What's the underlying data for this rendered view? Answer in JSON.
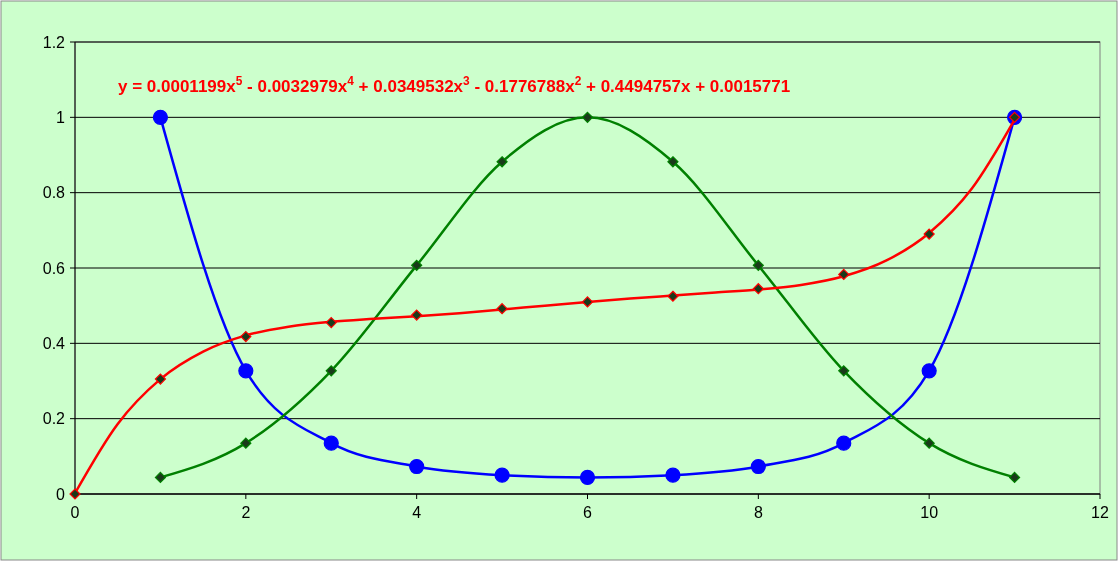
{
  "chart_data": {
    "type": "line",
    "x": [
      1,
      2,
      3,
      4,
      5,
      6,
      7,
      8,
      9,
      10,
      11
    ],
    "xlim": [
      0,
      12
    ],
    "xticks": [
      0,
      2,
      4,
      6,
      8,
      10,
      12
    ],
    "ylim": [
      0,
      1.2
    ],
    "yticks": [
      0,
      0.2,
      0.4,
      0.6,
      0.8,
      1,
      1.2
    ],
    "grid": "y",
    "line_style": "solid",
    "annotations": [
      "y = 0.0001199x$^{5}$ - 0.0032979x$^{4}$ + 0.0349532x$^{3}$ - 0.1776788x$^{2}$ + 0.4494757x + 0.0015771"
    ],
    "series": [
      {
        "color": "#0000ff",
        "marker": "circle",
        "values": [
          1,
          0.327,
          0.135,
          0.073,
          0.05,
          0.044,
          0.05,
          0.073,
          0.135,
          0.327,
          1
        ]
      },
      {
        "color": "#008000",
        "marker": "diamond",
        "values": [
          0.044,
          0.135,
          0.327,
          0.607,
          0.882,
          1,
          0.882,
          0.607,
          0.327,
          0.135,
          0.044
        ]
      },
      {
        "color": "#ff0000",
        "marker": "none",
        "x": [
          0,
          0.5,
          1,
          1.5,
          2,
          2.5,
          3,
          3.5,
          4,
          4.5,
          5,
          5.5,
          6,
          6.5,
          7,
          7.5,
          8,
          8.5,
          9,
          9.5,
          10,
          10.5,
          11
        ],
        "values": [
          0.002,
          0.186,
          0.305,
          0.378,
          0.421,
          0.444,
          0.457,
          0.465,
          0.472,
          0.48,
          0.49,
          0.5,
          0.51,
          0.519,
          0.527,
          0.535,
          0.543,
          0.555,
          0.578,
          0.62,
          0.693,
          0.811,
          0.994
        ]
      },
      {
        "type": "scatter",
        "color": "#ff0000",
        "marker": "diamond",
        "x": [
          0,
          1,
          2,
          3,
          4,
          5,
          6,
          7,
          8,
          9,
          10,
          11
        ],
        "values": [
          0,
          0.305,
          0.418,
          0.455,
          0.475,
          0.492,
          0.51,
          0.525,
          0.545,
          0.583,
          0.69,
          1
        ]
      }
    ]
  }
}
